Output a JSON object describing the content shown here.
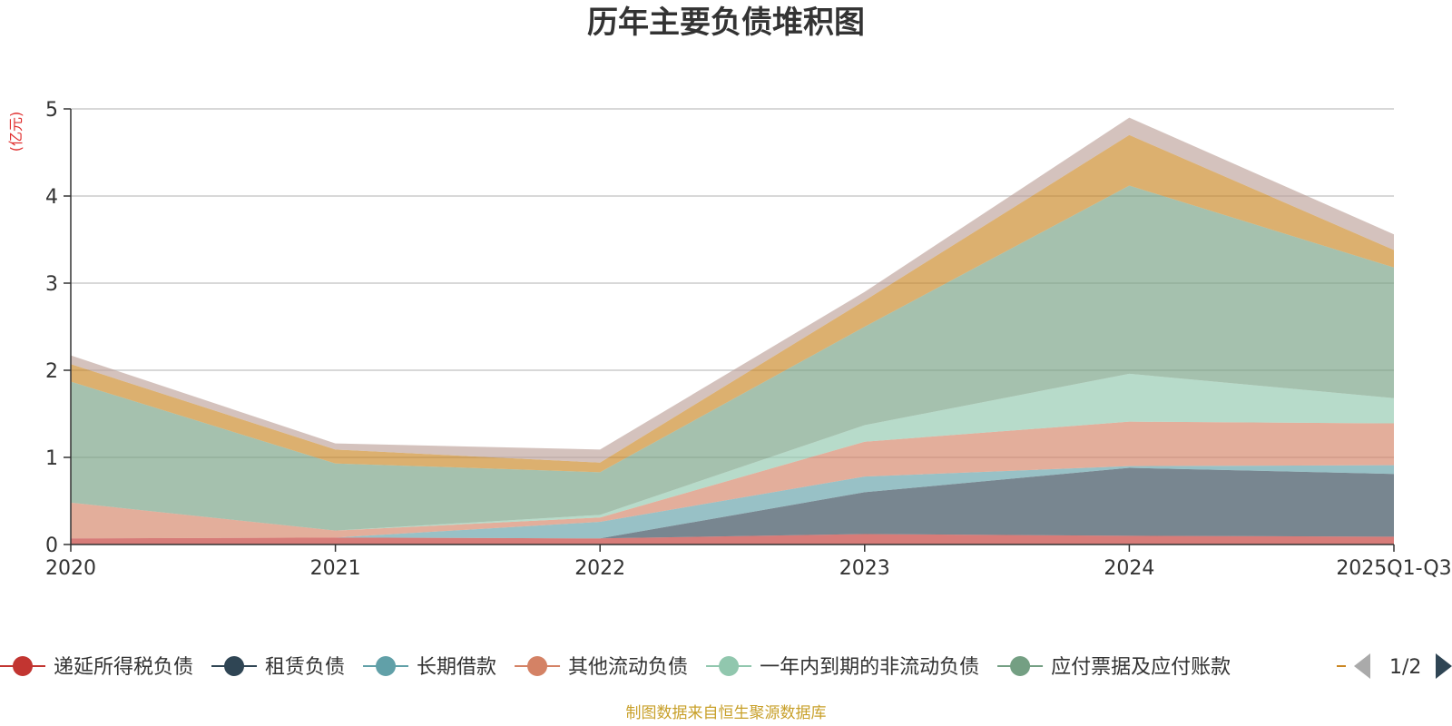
{
  "chart_data": {
    "type": "area",
    "stacked": true,
    "title": "历年主要负债堆积图",
    "ylabel": "(亿元)",
    "ylim": [
      0,
      5
    ],
    "yticks": [
      "0",
      "1",
      "2",
      "3",
      "4",
      "5"
    ],
    "grid": true,
    "categories": [
      "2020",
      "2021",
      "2022",
      "2023",
      "2024",
      "2025Q1-Q3"
    ],
    "series": [
      {
        "name": "递延所得税负债",
        "color": "#c23531",
        "values": [
          0.07,
          0.08,
          0.07,
          0.12,
          0.1,
          0.09
        ]
      },
      {
        "name": "租赁负债",
        "color": "#2f4554",
        "values": [
          0.0,
          0.0,
          0.0,
          0.48,
          0.78,
          0.72
        ]
      },
      {
        "name": "长期借款",
        "color": "#61a0a8",
        "values": [
          0.0,
          0.0,
          0.19,
          0.18,
          0.02,
          0.1
        ]
      },
      {
        "name": "其他流动负债",
        "color": "#d48265",
        "values": [
          0.41,
          0.08,
          0.05,
          0.4,
          0.51,
          0.48
        ]
      },
      {
        "name": "一年内到期的非流动负债",
        "color": "#91c7ae",
        "values": [
          0.0,
          0.0,
          0.03,
          0.19,
          0.55,
          0.29
        ]
      },
      {
        "name": "应付票据及应付账款",
        "color": "#749f83",
        "values": [
          1.39,
          0.77,
          0.49,
          1.13,
          2.16,
          1.5
        ]
      },
      {
        "name": "",
        "color": "#ca8622",
        "values": [
          0.2,
          0.16,
          0.11,
          0.3,
          0.58,
          0.2
        ]
      },
      {
        "name": "",
        "color": "#bda29a",
        "values": [
          0.1,
          0.07,
          0.15,
          0.1,
          0.2,
          0.18
        ]
      }
    ]
  },
  "legend": {
    "items": [
      {
        "label": "递延所得税负债",
        "color": "#c23531"
      },
      {
        "label": "租赁负债",
        "color": "#2f4554"
      },
      {
        "label": "长期借款",
        "color": "#61a0a8"
      },
      {
        "label": "其他流动负债",
        "color": "#d48265"
      },
      {
        "label": "一年内到期的非流动负债",
        "color": "#91c7ae"
      },
      {
        "label": "应付票据及应付账款",
        "color": "#749f83"
      }
    ],
    "partial_color": "#ca8622",
    "page": "1/2"
  },
  "source": "制图数据来自恒生聚源数据库"
}
